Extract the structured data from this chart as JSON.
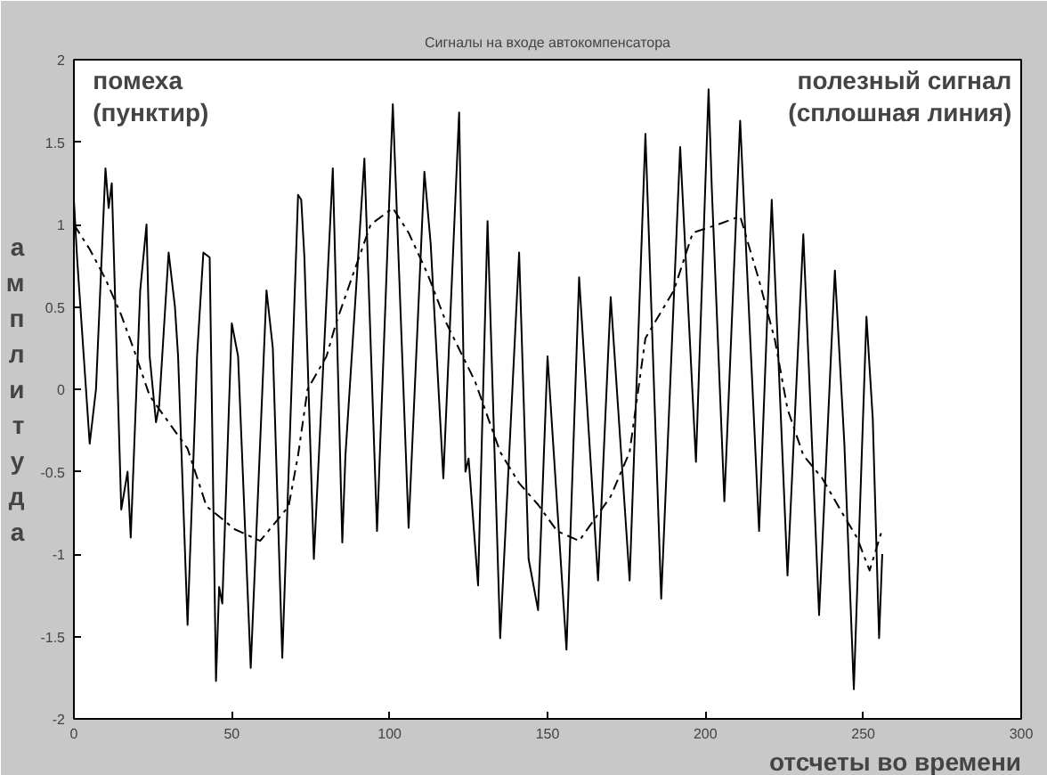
{
  "chart_data": {
    "type": "line",
    "title": "Сигналы на входе автокомпенсатора",
    "xlabel": "отсчеты во времени",
    "ylabel": "амплитуда",
    "annotations": [
      "помеха\n(пунктир)",
      "полезный сигнал\n(сплошная линия)"
    ],
    "xlim": [
      0,
      300
    ],
    "ylim": [
      -2,
      2
    ],
    "xticks": [
      0,
      50,
      100,
      150,
      200,
      250,
      300
    ],
    "yticks": [
      -2,
      -1.5,
      -1,
      -0.5,
      0,
      0.5,
      1,
      1.5,
      2
    ],
    "grid": false,
    "series": [
      {
        "color": "#000000",
        "line_style": "solid",
        "x": [
          0,
          1,
          5,
          7,
          10,
          11,
          12,
          15,
          17,
          18,
          21,
          23,
          24,
          26,
          27,
          30,
          32,
          33,
          36,
          39,
          41,
          43,
          45,
          46,
          47,
          50,
          52,
          56,
          61,
          63,
          66,
          71,
          72,
          73,
          76,
          82,
          85,
          86,
          92,
          96,
          101,
          106,
          111,
          113,
          117,
          122,
          124,
          125,
          128,
          131,
          135,
          141,
          144,
          147,
          150,
          156,
          160,
          166,
          170,
          176,
          181,
          186,
          192,
          197,
          201,
          202,
          206,
          211,
          217,
          221,
          226,
          231,
          236,
          241,
          244,
          247,
          251,
          253,
          255,
          256
        ],
        "values": [
          1.15,
          0.8,
          -0.33,
          0.0,
          1.34,
          1.1,
          1.25,
          -0.73,
          -0.5,
          -0.9,
          0.6,
          1.0,
          0.2,
          -0.2,
          -0.1,
          0.83,
          0.5,
          0.2,
          -1.43,
          0.2,
          0.83,
          0.8,
          -1.77,
          -1.2,
          -1.3,
          0.4,
          0.2,
          -1.69,
          0.6,
          0.25,
          -1.63,
          1.18,
          1.15,
          0.8,
          -1.03,
          1.34,
          -0.93,
          -0.4,
          1.4,
          -0.86,
          1.73,
          -0.84,
          1.32,
          0.88,
          -0.54,
          1.68,
          -0.5,
          -0.42,
          -1.19,
          1.02,
          -1.51,
          0.83,
          -1.03,
          -1.34,
          0.2,
          -1.58,
          0.68,
          -1.16,
          0.56,
          -1.16,
          1.55,
          -1.27,
          1.47,
          -0.44,
          1.82,
          1.23,
          -0.68,
          1.63,
          -0.86,
          1.15,
          -1.13,
          0.94,
          -1.37,
          0.72,
          -0.33,
          -1.82,
          0.44,
          -0.18,
          -1.51,
          -1.0
        ]
      },
      {
        "color": "#000000",
        "line_style": "dashed",
        "x": [
          0,
          5,
          10,
          15,
          19,
          24,
          30,
          36,
          42,
          51,
          59,
          68,
          71,
          74,
          80,
          83,
          89,
          94,
          101,
          106,
          112,
          118,
          127,
          135,
          141,
          147,
          153,
          160,
          170,
          176,
          181,
          190,
          196,
          204,
          211,
          217,
          222,
          226,
          231,
          237,
          243,
          248,
          252,
          256
        ],
        "values": [
          1.0,
          0.85,
          0.67,
          0.45,
          0.24,
          -0.04,
          -0.2,
          -0.36,
          -0.71,
          -0.85,
          -0.92,
          -0.71,
          -0.4,
          0.0,
          0.2,
          0.4,
          0.73,
          1.0,
          1.1,
          0.95,
          0.7,
          0.4,
          0.05,
          -0.38,
          -0.57,
          -0.7,
          -0.86,
          -0.92,
          -0.65,
          -0.38,
          0.31,
          0.6,
          0.95,
          1.0,
          1.05,
          0.66,
          0.3,
          -0.12,
          -0.4,
          -0.54,
          -0.74,
          -0.9,
          -1.1,
          -0.85
        ]
      }
    ]
  }
}
